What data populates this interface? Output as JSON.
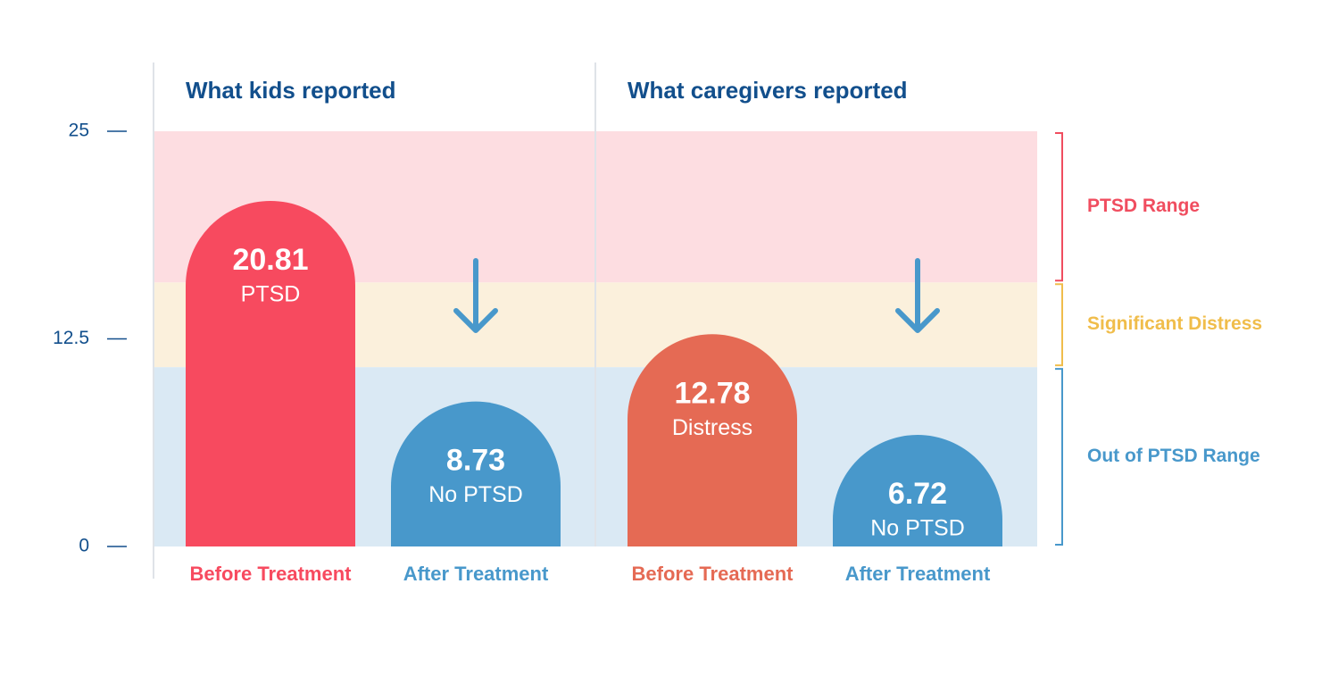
{
  "chart_data": {
    "type": "bar",
    "ylim": [
      0,
      25
    ],
    "yticks": [
      0,
      12.5,
      25
    ],
    "bands": [
      {
        "label": "Out of PTSD Range",
        "from": 0,
        "to": 10.8,
        "color": "#dae9f4",
        "label_color": "#4898cb"
      },
      {
        "label": "Significant Distress",
        "from": 10.8,
        "to": 15.9,
        "color": "#fbf0dc",
        "label_color": "#f0bd4b"
      },
      {
        "label": "PTSD Range",
        "from": 15.9,
        "to": 25,
        "color": "#fddde1",
        "label_color": "#f04d5f"
      }
    ],
    "panels": [
      {
        "title": "What kids reported",
        "categories": [
          "Before Treatment",
          "After Treatment"
        ],
        "values": [
          20.81,
          8.73
        ],
        "bar_labels": [
          "PTSD",
          "No PTSD"
        ],
        "colors": [
          "#f74a5f",
          "#4898cb"
        ]
      },
      {
        "title": "What caregivers reported",
        "categories": [
          "Before Treatment",
          "After Treatment"
        ],
        "values": [
          12.78,
          6.72
        ],
        "bar_labels": [
          "Distress",
          "No PTSD"
        ],
        "colors": [
          "#e56a54",
          "#4898cb"
        ]
      }
    ]
  }
}
